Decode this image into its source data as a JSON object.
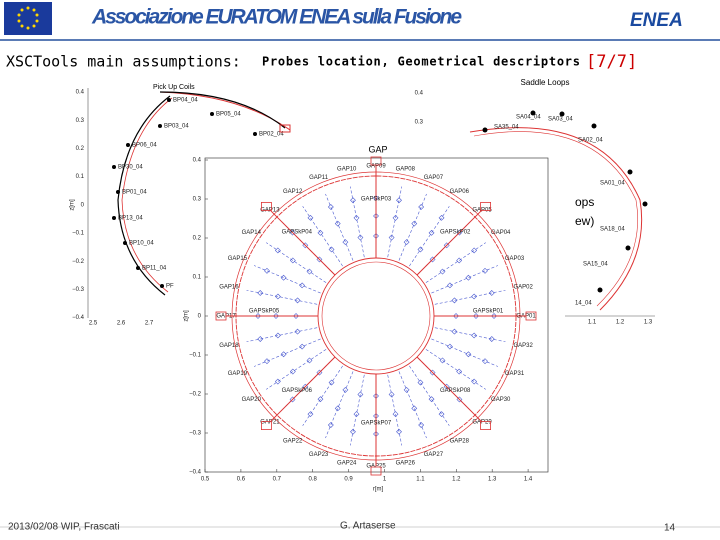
{
  "header": {
    "banner": "Associazione EURATOM ENEA sulla Fusione",
    "logo": "ENEA"
  },
  "title": {
    "main": "XSCTools main assumptions:",
    "sub": "Probes location, Geometrical descriptors",
    "page": "[7/7]"
  },
  "pickup": {
    "title": "Pick Up Coils",
    "ylabel": "z[m]",
    "yticks": [
      "0.4",
      "0.3",
      "0.2",
      "0.1",
      "0",
      "−0.1",
      "−0.2",
      "−0.3",
      "−0.4"
    ],
    "xticks": [
      "2.5",
      "2.6",
      "2.7"
    ],
    "labels": [
      "BP04_04",
      "BP05_04",
      "BP03_04",
      "BP02_04",
      "BP06_04",
      "BP30_04",
      "BP01_04",
      "BP13_04",
      "BP10_04",
      "BP11_04",
      "PF"
    ]
  },
  "saddle": {
    "title": "Saddle Loops",
    "yticks": [
      "0.4",
      "0.3"
    ],
    "xticks": [
      "1.1",
      "1.2",
      "1.3"
    ],
    "labels": [
      "SA04_04",
      "SA03_04",
      "SA35_04",
      "SA02_04",
      "SA01_04",
      "SA18_04",
      "SA15_04",
      "14_04"
    ]
  },
  "fragments": [
    "ops",
    "ew)"
  ],
  "gap": {
    "title": "GAP",
    "xlabel": "r[m]",
    "ylabel": "z[m]",
    "xticks": [
      "0.5",
      "0.6",
      "0.7",
      "0.8",
      "0.9",
      "1",
      "1.1",
      "1.2",
      "1.3",
      "1.4"
    ],
    "yticks": [
      "0.4",
      "0.3",
      "0.2",
      "0.1",
      "0",
      "−0.1",
      "−0.2",
      "−0.3",
      "−0.4"
    ],
    "probes": [
      "GAP01",
      "GAP02",
      "GAP03",
      "GAP04",
      "GAP05",
      "GAP06",
      "GAP07",
      "GAP08",
      "GAP09",
      "GAP10",
      "GAP11",
      "GAP12",
      "GAP13",
      "GAP14",
      "GAP15",
      "GAP16",
      "GAP17",
      "GAP18",
      "GAP19",
      "GAP20",
      "GAP21",
      "GAP22",
      "GAP23",
      "GAP24",
      "GAP25",
      "GAP26",
      "GAP27",
      "GAP28",
      "GAP29",
      "GAP30",
      "GAP31",
      "GAP32"
    ],
    "skp": [
      "GAPSkP01",
      "GAPSkP02",
      "GAPSkP03",
      "GAPSkP04",
      "GAPSkP05",
      "GAPSkP06",
      "GAPSkP07",
      "GAPSkP08"
    ]
  },
  "footer": {
    "date": "2013/02/08 WIP, Frascati",
    "author": "G. Artaserse",
    "page": "14"
  }
}
